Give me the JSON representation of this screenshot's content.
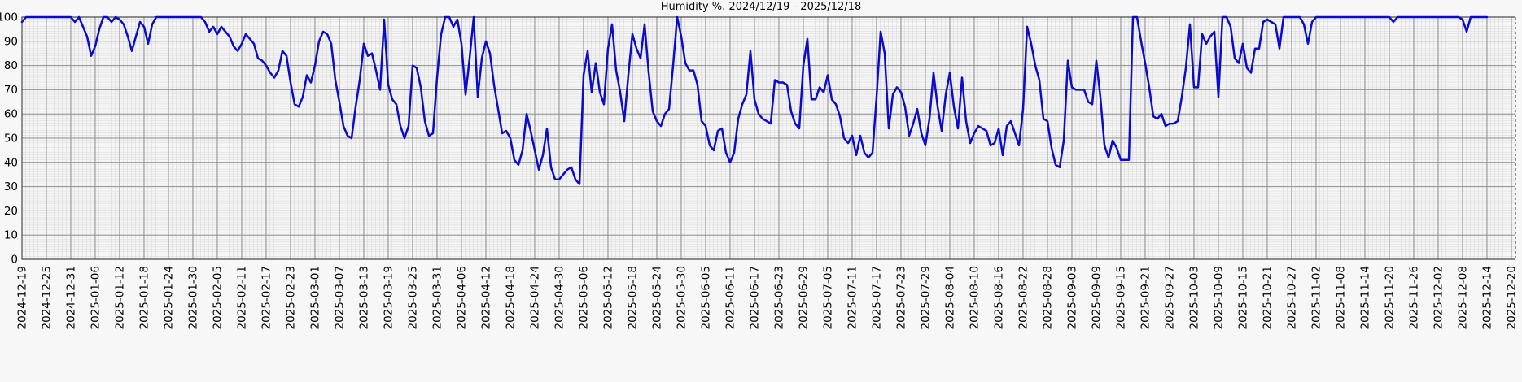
{
  "title": "Humidity %. 2024/12/19 - 2025/12/18",
  "colors": {
    "background": "#f7f7f7",
    "line": "#0b0bcc",
    "major_grid": "#909090",
    "minor_grid": "#e1e1e1",
    "border": "#4d4d4d",
    "text": "#000000"
  },
  "chart_data": {
    "type": "line",
    "title": "Humidity %. 2024/12/19 - 2025/12/18",
    "xlabel": "",
    "ylabel": "",
    "ylim": [
      0,
      100
    ],
    "y_ticks": [
      0,
      10,
      20,
      30,
      40,
      50,
      60,
      70,
      80,
      90,
      100
    ],
    "grid": "on",
    "legend": "none",
    "x_start_date": "2024-12-19",
    "x_step_days": 1,
    "x_tick_every_days": 6,
    "x_tick_labels": [
      "2024-12-19",
      "2024-12-25",
      "2024-12-31",
      "2025-01-06",
      "2025-01-12",
      "2025-01-18",
      "2025-01-24",
      "2025-01-30",
      "2025-02-05",
      "2025-02-11",
      "2025-02-17",
      "2025-02-23",
      "2025-03-01",
      "2025-03-07",
      "2025-03-13",
      "2025-03-19",
      "2025-03-25",
      "2025-03-31",
      "2025-04-06",
      "2025-04-12",
      "2025-04-18",
      "2025-04-24",
      "2025-04-30",
      "2025-05-06",
      "2025-05-12",
      "2025-05-18",
      "2025-05-24",
      "2025-05-30",
      "2025-06-05",
      "2025-06-11",
      "2025-06-17",
      "2025-06-23",
      "2025-06-29",
      "2025-07-05",
      "2025-07-11",
      "2025-07-17",
      "2025-07-23",
      "2025-07-29",
      "2025-08-04",
      "2025-08-10",
      "2025-08-16",
      "2025-08-22",
      "2025-08-28",
      "2025-09-03",
      "2025-09-09",
      "2025-09-15",
      "2025-09-21",
      "2025-09-27",
      "2025-10-03",
      "2025-10-09",
      "2025-10-15",
      "2025-10-21",
      "2025-10-27",
      "2025-11-02",
      "2025-11-08",
      "2025-11-14",
      "2025-11-20",
      "2025-11-26",
      "2025-12-02",
      "2025-12-08",
      "2025-12-14",
      "2025-12-20"
    ],
    "series": [
      {
        "name": "Humidity %",
        "color": "#0b0bcc",
        "values": [
          98,
          100,
          100,
          100,
          100,
          100,
          100,
          100,
          100,
          100,
          100,
          100,
          100,
          98,
          100,
          96,
          92,
          84,
          88,
          95,
          100,
          100,
          98,
          100,
          99,
          97,
          92,
          86,
          92,
          98,
          96,
          89,
          97,
          100,
          100,
          100,
          100,
          100,
          100,
          100,
          100,
          100,
          100,
          100,
          100,
          98,
          94,
          96,
          93,
          96,
          94,
          92,
          88,
          86,
          89,
          93,
          91,
          89,
          83,
          82,
          80,
          77,
          75,
          78,
          86,
          84,
          73,
          64,
          63,
          67,
          76,
          73,
          80,
          90,
          94,
          93,
          89,
          74,
          65,
          55,
          51,
          50,
          63,
          74,
          89,
          84,
          85,
          78,
          70,
          99,
          72,
          66,
          64,
          55,
          50,
          55,
          80,
          79,
          71,
          57,
          51,
          52,
          75,
          93,
          100,
          100,
          96,
          99,
          89,
          68,
          83,
          100,
          67,
          83,
          90,
          85,
          72,
          62,
          52,
          53,
          50,
          41,
          39,
          45,
          60,
          53,
          45,
          37,
          43,
          54,
          38,
          33,
          33,
          35,
          37,
          38,
          33,
          31,
          76,
          86,
          69,
          81,
          69,
          64,
          87,
          97,
          78,
          69,
          57,
          76,
          93,
          87,
          83,
          97,
          77,
          61,
          57,
          55,
          60,
          62,
          80,
          100,
          92,
          81,
          78,
          78,
          72,
          57,
          55,
          47,
          45,
          53,
          54,
          44,
          40,
          44,
          58,
          64,
          68,
          86,
          66,
          60,
          58,
          57,
          56,
          74,
          73,
          73,
          72,
          61,
          56,
          54,
          80,
          91,
          66,
          66,
          71,
          69,
          76,
          66,
          64,
          59,
          50,
          48,
          51,
          43,
          51,
          44,
          42,
          44,
          67,
          94,
          85,
          54,
          68,
          71,
          69,
          63,
          51,
          56,
          62,
          52,
          47,
          58,
          77,
          63,
          53,
          68,
          77,
          63,
          54,
          75,
          57,
          48,
          52,
          55,
          54,
          53,
          47,
          48,
          54,
          43,
          55,
          57,
          52,
          47,
          62,
          96,
          89,
          80,
          74,
          58,
          57,
          46,
          39,
          38,
          49,
          82,
          71,
          70,
          70,
          70,
          65,
          64,
          82,
          67,
          47,
          42,
          49,
          46,
          41,
          41,
          41,
          100,
          100,
          90,
          81,
          71,
          59,
          58,
          60,
          55,
          56,
          56,
          57,
          67,
          79,
          97,
          71,
          71,
          93,
          89,
          92,
          94,
          67,
          100,
          100,
          96,
          83,
          81,
          89,
          79,
          77,
          87,
          87,
          98,
          99,
          98,
          97,
          87,
          100,
          100,
          100,
          100,
          100,
          97,
          89,
          98,
          100,
          100,
          100,
          100,
          100,
          100,
          100,
          100,
          100,
          100,
          100,
          100,
          100,
          100,
          100,
          100,
          100,
          100,
          100,
          98,
          100,
          100,
          100,
          100,
          100,
          100,
          100,
          100,
          100,
          100,
          100,
          100,
          100,
          100,
          100,
          100,
          99,
          94,
          100,
          100,
          100,
          100,
          100
        ]
      }
    ]
  }
}
